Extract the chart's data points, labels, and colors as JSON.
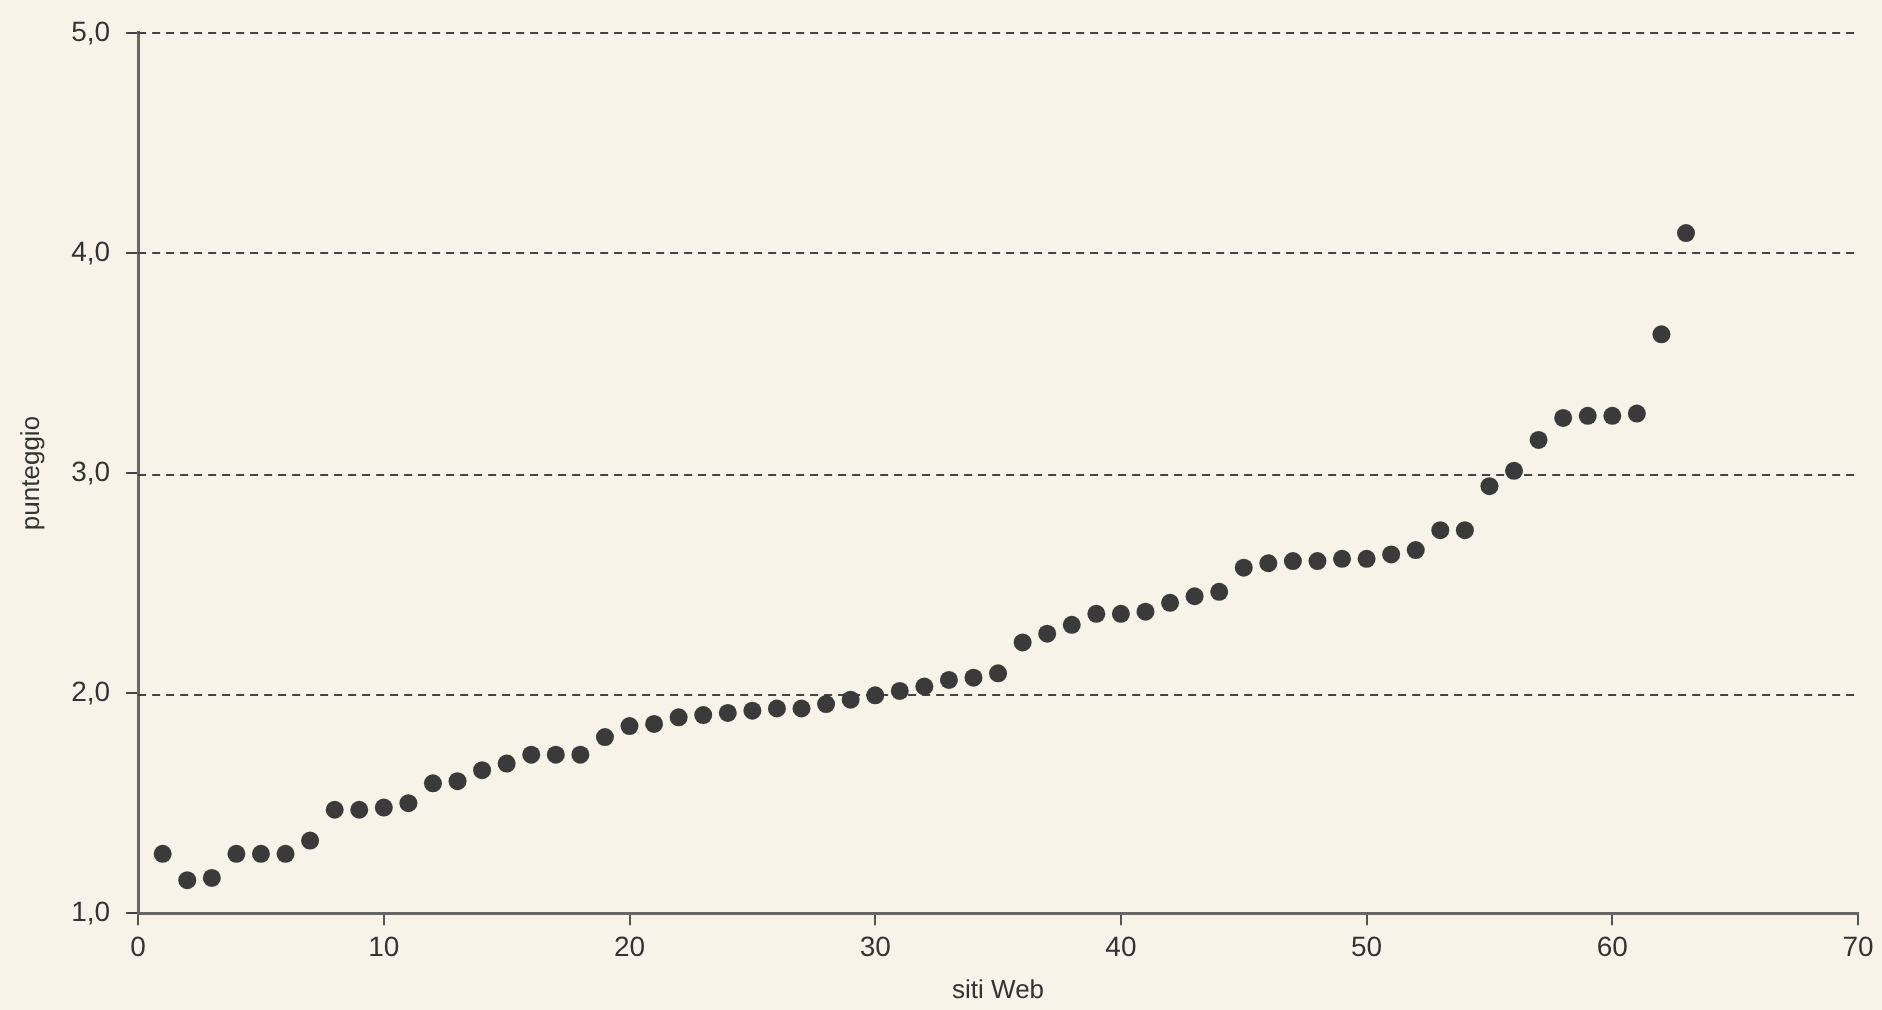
{
  "chart_data": {
    "type": "scatter",
    "xlabel": "siti Web",
    "ylabel": "punteggio",
    "x": [
      1,
      2,
      3,
      4,
      5,
      6,
      7,
      8,
      9,
      10,
      11,
      12,
      13,
      14,
      15,
      16,
      17,
      18,
      19,
      20,
      21,
      22,
      23,
      24,
      25,
      26,
      27,
      28,
      29,
      30,
      31,
      32,
      33,
      34,
      35,
      36,
      37,
      38,
      39,
      40,
      41,
      42,
      43,
      44,
      45,
      46,
      47,
      48,
      49,
      50,
      51,
      52,
      53,
      54,
      55,
      56,
      57,
      58,
      59,
      60,
      61,
      62,
      63
    ],
    "series": [
      {
        "color": "#3a3a3a",
        "values": [
          1.27,
          1.15,
          1.16,
          1.27,
          1.27,
          1.27,
          1.33,
          1.47,
          1.47,
          1.48,
          1.5,
          1.59,
          1.6,
          1.65,
          1.68,
          1.72,
          1.72,
          1.72,
          1.8,
          1.85,
          1.86,
          1.89,
          1.9,
          1.91,
          1.92,
          1.93,
          1.93,
          1.95,
          1.97,
          1.99,
          2.01,
          2.03,
          2.06,
          2.07,
          2.09,
          2.23,
          2.27,
          2.31,
          2.36,
          2.36,
          2.37,
          2.41,
          2.44,
          2.46,
          2.57,
          2.59,
          2.6,
          2.6,
          2.61,
          2.61,
          2.63,
          2.65,
          2.74,
          2.74,
          2.94,
          3.01,
          3.15,
          3.25,
          3.26,
          3.26,
          3.27,
          3.63,
          4.09
        ]
      }
    ],
    "xlim": [
      0,
      70
    ],
    "xticks": [
      0,
      10,
      20,
      30,
      40,
      50,
      60,
      70
    ],
    "ylim": [
      1,
      5
    ],
    "yticks": [
      {
        "value": 1,
        "label": "1,0"
      },
      {
        "value": 2,
        "label": "2,0"
      },
      {
        "value": 3,
        "label": "3,0"
      },
      {
        "value": 4,
        "label": "4,0"
      },
      {
        "value": 5,
        "label": "5,0"
      }
    ],
    "grid": "y",
    "legend": false,
    "marker": "circle"
  }
}
